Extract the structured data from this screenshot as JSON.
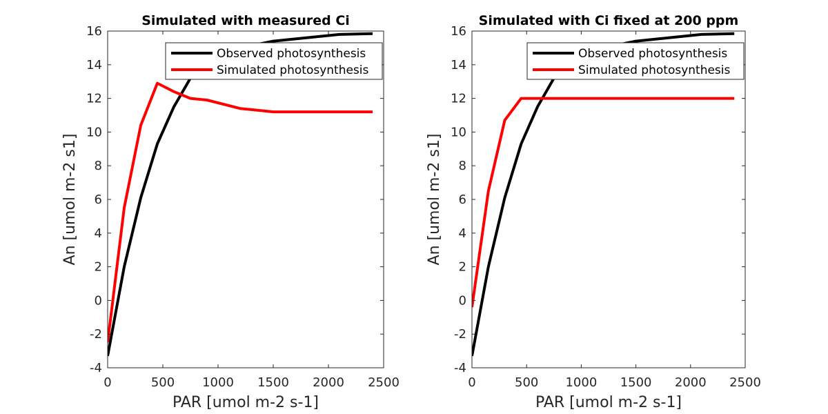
{
  "chart_data": [
    {
      "type": "line",
      "title": "Simulated with measured Ci",
      "xlabel": "PAR [umol m-2 s-1]",
      "ylabel": "An [umol m-2 s1]",
      "xlim": [
        0,
        2500
      ],
      "ylim": [
        -4,
        16
      ],
      "xticks": [
        0,
        500,
        1000,
        1500,
        2000,
        2500
      ],
      "yticks": [
        -4,
        -2,
        0,
        2,
        4,
        6,
        8,
        10,
        12,
        14,
        16
      ],
      "grid": false,
      "legend_position": "top-right",
      "series": [
        {
          "name": "Observed photosynthesis",
          "color": "#000000",
          "x": [
            0,
            150,
            300,
            450,
            600,
            750,
            900,
            1200,
            1500,
            1800,
            2100,
            2400
          ],
          "y": [
            -3.3,
            2.0,
            6.1,
            9.3,
            11.5,
            13.2,
            14.3,
            15.0,
            15.4,
            15.6,
            15.8,
            15.85
          ]
        },
        {
          "name": "Simulated photosynthesis",
          "color": "#ff0000",
          "x": [
            0,
            150,
            300,
            450,
            600,
            750,
            900,
            1200,
            1500,
            1800,
            2100,
            2400
          ],
          "y": [
            -2.5,
            5.5,
            10.4,
            12.9,
            12.4,
            12.0,
            11.9,
            11.4,
            11.2,
            11.2,
            11.2,
            11.2
          ]
        }
      ]
    },
    {
      "type": "line",
      "title": "Simulated with Ci fixed at 200 ppm",
      "xlabel": "PAR [umol m-2 s-1]",
      "ylabel": "An [umol m-2 s1]",
      "xlim": [
        0,
        2500
      ],
      "ylim": [
        -4,
        16
      ],
      "xticks": [
        0,
        500,
        1000,
        1500,
        2000,
        2500
      ],
      "yticks": [
        -4,
        -2,
        0,
        2,
        4,
        6,
        8,
        10,
        12,
        14,
        16
      ],
      "grid": false,
      "legend_position": "top-right",
      "series": [
        {
          "name": "Observed photosynthesis",
          "color": "#000000",
          "x": [
            0,
            150,
            300,
            450,
            600,
            750,
            900,
            1200,
            1500,
            1800,
            2100,
            2400
          ],
          "y": [
            -3.3,
            2.0,
            6.1,
            9.3,
            11.5,
            13.2,
            14.3,
            15.0,
            15.4,
            15.6,
            15.8,
            15.85
          ]
        },
        {
          "name": "Simulated photosynthesis",
          "color": "#ff0000",
          "x": [
            0,
            150,
            300,
            450,
            600,
            750,
            900,
            1200,
            1500,
            1800,
            2100,
            2400
          ],
          "y": [
            -0.4,
            6.5,
            10.7,
            12.0,
            12.0,
            12.0,
            12.0,
            12.0,
            12.0,
            12.0,
            12.0,
            12.0
          ]
        }
      ]
    }
  ]
}
